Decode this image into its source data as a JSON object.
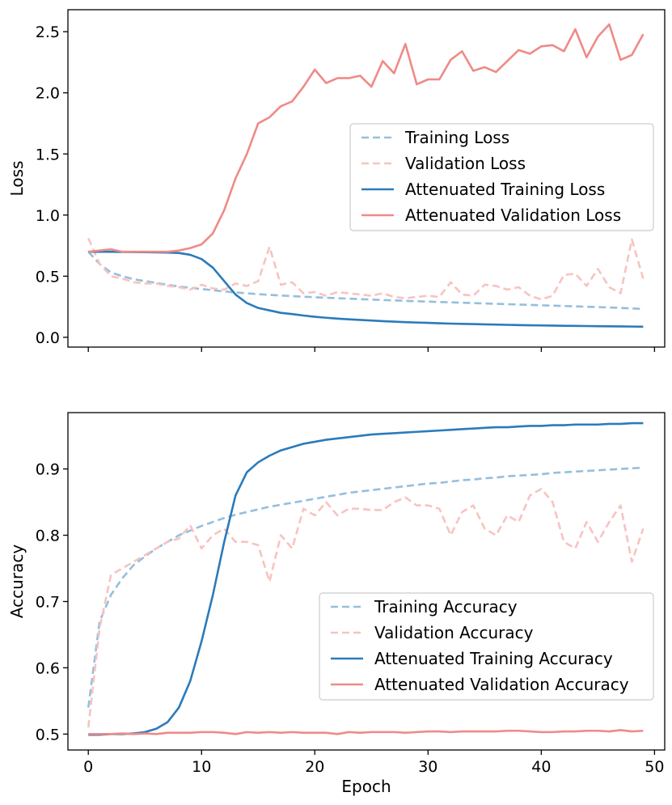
{
  "figure": {
    "xlabel": "Epoch",
    "x_ticks": [
      0,
      10,
      20,
      30,
      40,
      50
    ]
  },
  "chart_data": [
    {
      "type": "line",
      "name": "loss",
      "title": "",
      "xlabel": "",
      "ylabel": "Loss",
      "xlim": [
        -1.8,
        50.9
      ],
      "ylim": [
        -0.08,
        2.68
      ],
      "y_ticks": [
        0.0,
        0.5,
        1.0,
        1.5,
        2.0,
        2.5
      ],
      "y_tick_labels": [
        "0.0",
        "0.5",
        "1.0",
        "1.5",
        "2.0",
        "2.5"
      ],
      "x_tick_labels_visible": false,
      "legend_position": "center-right",
      "series": [
        {
          "name": "Training Loss",
          "color": "#94bfdd",
          "dash": "dashed",
          "values": [
            0.7,
            0.6,
            0.53,
            0.5,
            0.475,
            0.46,
            0.445,
            0.43,
            0.415,
            0.405,
            0.395,
            0.385,
            0.375,
            0.367,
            0.36,
            0.353,
            0.347,
            0.342,
            0.337,
            0.332,
            0.328,
            0.324,
            0.32,
            0.316,
            0.312,
            0.309,
            0.305,
            0.302,
            0.298,
            0.295,
            0.292,
            0.289,
            0.286,
            0.283,
            0.28,
            0.277,
            0.274,
            0.271,
            0.268,
            0.265,
            0.262,
            0.259,
            0.256,
            0.253,
            0.25,
            0.247,
            0.244,
            0.24,
            0.236,
            0.232
          ]
        },
        {
          "name": "Validation Loss",
          "color": "#f7c3c1",
          "dash": "dashed",
          "values": [
            0.81,
            0.6,
            0.5,
            0.48,
            0.45,
            0.44,
            0.44,
            0.42,
            0.41,
            0.39,
            0.43,
            0.4,
            0.39,
            0.44,
            0.42,
            0.46,
            0.74,
            0.43,
            0.45,
            0.36,
            0.37,
            0.34,
            0.37,
            0.36,
            0.35,
            0.34,
            0.36,
            0.33,
            0.32,
            0.33,
            0.34,
            0.33,
            0.45,
            0.35,
            0.34,
            0.43,
            0.42,
            0.39,
            0.41,
            0.34,
            0.31,
            0.34,
            0.51,
            0.52,
            0.42,
            0.56,
            0.41,
            0.36,
            0.8,
            0.48
          ]
        },
        {
          "name": "Attenuated Training Loss",
          "color": "#2b7bba",
          "dash": "solid",
          "values": [
            0.7,
            0.7,
            0.7,
            0.698,
            0.697,
            0.696,
            0.695,
            0.693,
            0.69,
            0.675,
            0.64,
            0.57,
            0.46,
            0.35,
            0.28,
            0.24,
            0.22,
            0.2,
            0.19,
            0.178,
            0.168,
            0.16,
            0.153,
            0.147,
            0.142,
            0.137,
            0.132,
            0.128,
            0.124,
            0.121,
            0.118,
            0.115,
            0.112,
            0.11,
            0.108,
            0.106,
            0.104,
            0.102,
            0.1,
            0.098,
            0.097,
            0.096,
            0.094,
            0.093,
            0.092,
            0.091,
            0.09,
            0.089,
            0.088,
            0.087
          ]
        },
        {
          "name": "Attenuated Validation Loss",
          "color": "#ef8a87",
          "dash": "solid",
          "values": [
            0.7,
            0.71,
            0.72,
            0.7,
            0.7,
            0.7,
            0.7,
            0.7,
            0.71,
            0.73,
            0.76,
            0.85,
            1.04,
            1.3,
            1.5,
            1.75,
            1.8,
            1.89,
            1.93,
            2.05,
            2.19,
            2.08,
            2.12,
            2.12,
            2.14,
            2.05,
            2.26,
            2.16,
            2.4,
            2.07,
            2.11,
            2.11,
            2.27,
            2.34,
            2.18,
            2.21,
            2.17,
            2.26,
            2.35,
            2.32,
            2.38,
            2.39,
            2.34,
            2.52,
            2.29,
            2.46,
            2.56,
            2.27,
            2.31,
            2.48
          ]
        }
      ]
    },
    {
      "type": "line",
      "name": "accuracy",
      "title": "",
      "xlabel": "Epoch",
      "ylabel": "Accuracy",
      "xlim": [
        -1.8,
        50.9
      ],
      "ylim": [
        0.476,
        0.985
      ],
      "y_ticks": [
        0.5,
        0.6,
        0.7,
        0.8,
        0.9
      ],
      "y_tick_labels": [
        "0.5",
        "0.6",
        "0.7",
        "0.8",
        "0.9"
      ],
      "x_tick_labels_visible": true,
      "legend_position": "lower-right",
      "series": [
        {
          "name": "Training Accuracy",
          "color": "#94bfdd",
          "dash": "dashed",
          "values": [
            0.54,
            0.67,
            0.71,
            0.735,
            0.755,
            0.768,
            0.78,
            0.79,
            0.8,
            0.807,
            0.814,
            0.82,
            0.826,
            0.831,
            0.835,
            0.839,
            0.843,
            0.846,
            0.849,
            0.852,
            0.855,
            0.858,
            0.861,
            0.864,
            0.866,
            0.868,
            0.87,
            0.872,
            0.874,
            0.876,
            0.878,
            0.879,
            0.881,
            0.883,
            0.884,
            0.886,
            0.887,
            0.889,
            0.89,
            0.891,
            0.892,
            0.894,
            0.895,
            0.896,
            0.897,
            0.898,
            0.899,
            0.9,
            0.901,
            0.902
          ]
        },
        {
          "name": "Validation Accuracy",
          "color": "#f7c3c1",
          "dash": "dashed",
          "values": [
            0.51,
            0.66,
            0.74,
            0.75,
            0.76,
            0.77,
            0.78,
            0.79,
            0.795,
            0.815,
            0.78,
            0.8,
            0.81,
            0.79,
            0.79,
            0.785,
            0.73,
            0.8,
            0.78,
            0.84,
            0.83,
            0.85,
            0.83,
            0.84,
            0.84,
            0.838,
            0.838,
            0.85,
            0.857,
            0.845,
            0.845,
            0.84,
            0.8,
            0.835,
            0.845,
            0.81,
            0.8,
            0.83,
            0.82,
            0.86,
            0.87,
            0.85,
            0.79,
            0.78,
            0.82,
            0.79,
            0.82,
            0.845,
            0.76,
            0.81
          ]
        },
        {
          "name": "Attenuated Training Accuracy",
          "color": "#2b7bba",
          "dash": "solid",
          "values": [
            0.499,
            0.499,
            0.5,
            0.5,
            0.501,
            0.503,
            0.508,
            0.518,
            0.54,
            0.58,
            0.64,
            0.71,
            0.79,
            0.86,
            0.895,
            0.91,
            0.92,
            0.928,
            0.933,
            0.938,
            0.941,
            0.944,
            0.946,
            0.948,
            0.95,
            0.952,
            0.953,
            0.954,
            0.955,
            0.956,
            0.957,
            0.958,
            0.959,
            0.96,
            0.961,
            0.962,
            0.963,
            0.963,
            0.964,
            0.965,
            0.965,
            0.966,
            0.966,
            0.967,
            0.967,
            0.967,
            0.968,
            0.968,
            0.969,
            0.969
          ]
        },
        {
          "name": "Attenuated Validation Accuracy",
          "color": "#ef8a87",
          "dash": "solid",
          "values": [
            0.5,
            0.5,
            0.5,
            0.501,
            0.5,
            0.501,
            0.5,
            0.502,
            0.502,
            0.502,
            0.503,
            0.503,
            0.502,
            0.5,
            0.503,
            0.502,
            0.503,
            0.502,
            0.503,
            0.502,
            0.502,
            0.502,
            0.5,
            0.503,
            0.502,
            0.503,
            0.503,
            0.503,
            0.502,
            0.503,
            0.504,
            0.504,
            0.503,
            0.504,
            0.504,
            0.504,
            0.504,
            0.505,
            0.505,
            0.504,
            0.503,
            0.503,
            0.504,
            0.504,
            0.505,
            0.505,
            0.504,
            0.506,
            0.504,
            0.505
          ]
        }
      ]
    }
  ]
}
